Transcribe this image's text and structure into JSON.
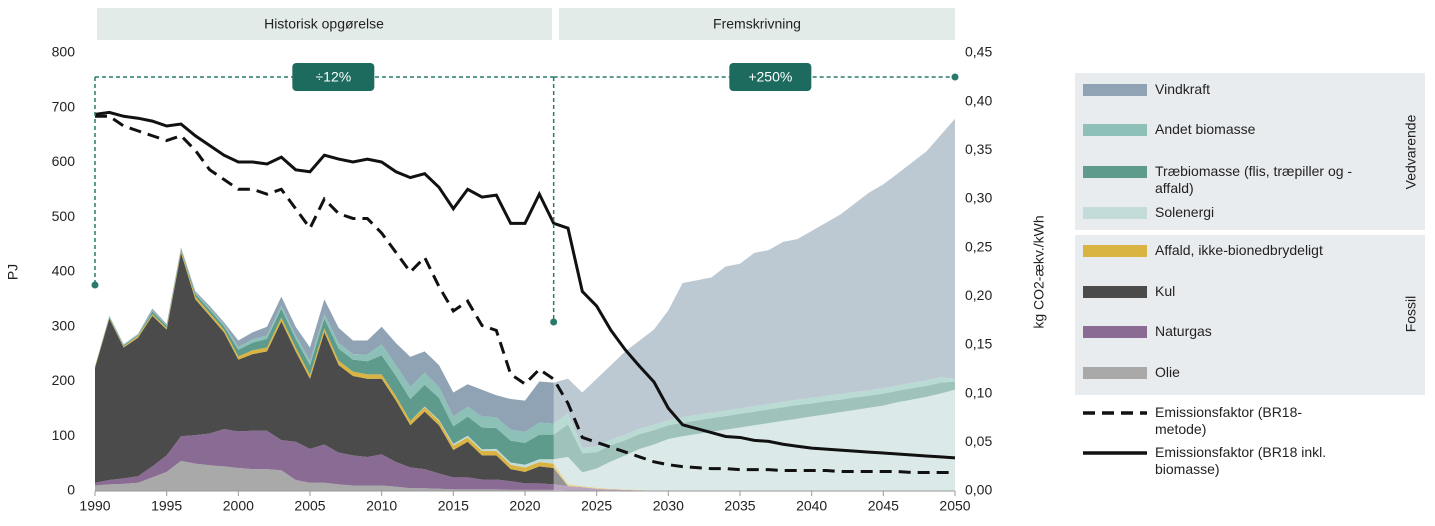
{
  "chart_data": {
    "type": "area",
    "sections": [
      "Historisk opgørelse",
      "Fremskrivning"
    ],
    "y_label": "PJ",
    "y2_label": "kg CO2-ækv./kWh",
    "legend_groups": [
      "Vedvarende",
      "Fossil"
    ],
    "x": [
      1990,
      1991,
      1992,
      1993,
      1994,
      1995,
      1996,
      1997,
      1998,
      1999,
      2000,
      2001,
      2002,
      2003,
      2004,
      2005,
      2006,
      2007,
      2008,
      2009,
      2010,
      2011,
      2012,
      2013,
      2014,
      2015,
      2016,
      2017,
      2018,
      2019,
      2020,
      2021,
      2022,
      2023,
      2024,
      2025,
      2026,
      2027,
      2028,
      2029,
      2030,
      2031,
      2032,
      2033,
      2034,
      2035,
      2036,
      2037,
      2038,
      2039,
      2040,
      2041,
      2042,
      2043,
      2044,
      2045,
      2046,
      2047,
      2048,
      2049,
      2050
    ],
    "xlim": [
      1990,
      2050
    ],
    "xticks": [
      1990,
      1995,
      2000,
      2005,
      2010,
      2015,
      2020,
      2025,
      2030,
      2035,
      2040,
      2045,
      2050
    ],
    "ylim": [
      0,
      800
    ],
    "yticks": [
      0,
      100,
      200,
      300,
      400,
      500,
      600,
      700,
      800
    ],
    "y2lim": [
      0,
      0.45
    ],
    "y2ticks": [
      {
        "value": 0,
        "label": "0,00"
      },
      {
        "value": 0.05,
        "label": "0,05"
      },
      {
        "value": 0.1,
        "label": "0,10"
      },
      {
        "value": 0.15,
        "label": "0,15"
      },
      {
        "value": 0.2,
        "label": "0,20"
      },
      {
        "value": 0.25,
        "label": "0,25"
      },
      {
        "value": 0.3,
        "label": "0,30"
      },
      {
        "value": 0.35,
        "label": "0,35"
      },
      {
        "value": 0.4,
        "label": "0,40"
      },
      {
        "value": 0.45,
        "label": "0,45"
      }
    ],
    "annotations": [
      {
        "label": "÷12%",
        "x": [
          1990,
          2022
        ]
      },
      {
        "label": "+250%",
        "x": [
          2022,
          2050
        ]
      }
    ],
    "series": [
      {
        "name": "Olie",
        "type": "area",
        "color": "#a9a9a9",
        "values": [
          10,
          12,
          13,
          15,
          25,
          35,
          55,
          50,
          47,
          45,
          42,
          40,
          40,
          38,
          20,
          15,
          15,
          12,
          10,
          10,
          10,
          8,
          5,
          5,
          4,
          3,
          3,
          3,
          3,
          2,
          2,
          2,
          2,
          1,
          1,
          0,
          0,
          0,
          0,
          0,
          0,
          0,
          0,
          0,
          0,
          0,
          0,
          0,
          0,
          0,
          0,
          0,
          0,
          0,
          0,
          0,
          0,
          0,
          0,
          0,
          0
        ]
      },
      {
        "name": "Naturgas",
        "type": "area",
        "color": "#8a6b93",
        "values": [
          5,
          8,
          10,
          12,
          20,
          30,
          45,
          52,
          58,
          68,
          67,
          70,
          70,
          55,
          70,
          62,
          70,
          58,
          55,
          52,
          57,
          45,
          38,
          35,
          28,
          22,
          22,
          18,
          18,
          16,
          12,
          12,
          10,
          8,
          6,
          4,
          3,
          2,
          1,
          0,
          0,
          0,
          0,
          0,
          0,
          0,
          0,
          0,
          0,
          0,
          0,
          0,
          0,
          0,
          0,
          0,
          0,
          0,
          0,
          0,
          0
        ]
      },
      {
        "name": "Kul",
        "type": "area",
        "color": "#4b4b4b",
        "values": [
          210,
          295,
          239,
          253,
          275,
          230,
          335,
          248,
          215,
          177,
          131,
          140,
          145,
          217,
          165,
          128,
          205,
          160,
          145,
          143,
          138,
          112,
          77,
          105,
          88,
          50,
          65,
          44,
          44,
          22,
          21,
          31,
          30,
          0,
          0,
          0,
          0,
          0,
          0,
          0,
          0,
          0,
          0,
          0,
          0,
          0,
          0,
          0,
          0,
          0,
          0,
          0,
          0,
          0,
          0,
          0,
          0,
          0,
          0,
          0,
          0
        ]
      },
      {
        "name": "Affald, ikke-bionedbrydeligt",
        "type": "area",
        "color": "#d9b443",
        "values": [
          2,
          2,
          2,
          3,
          3,
          3,
          4,
          5,
          5,
          5,
          6,
          7,
          7,
          7,
          7,
          7,
          7,
          8,
          8,
          8,
          8,
          8,
          8,
          8,
          8,
          8,
          8,
          8,
          8,
          8,
          8,
          8,
          8,
          3,
          2,
          2,
          1,
          1,
          1,
          0,
          0,
          0,
          0,
          0,
          0,
          0,
          0,
          0,
          0,
          0,
          0,
          0,
          0,
          0,
          0,
          0,
          0,
          0,
          0,
          0,
          0
        ]
      },
      {
        "name": "Solenergi",
        "type": "area",
        "color": "#c4dcd9",
        "values": [
          0,
          0,
          0,
          0,
          0,
          0,
          0,
          0,
          0,
          0,
          0,
          0,
          0,
          0,
          0,
          0,
          0,
          0,
          0,
          0,
          0,
          0,
          0,
          1,
          2,
          3,
          3,
          3,
          4,
          4,
          5,
          5,
          8,
          50,
          25,
          35,
          50,
          62,
          75,
          85,
          95,
          100,
          104,
          108,
          112,
          116,
          120,
          124,
          128,
          132,
          136,
          140,
          144,
          148,
          152,
          156,
          162,
          167,
          172,
          178,
          185
        ]
      },
      {
        "name": "Træbiomasse (flis, træpiller og -affald)",
        "type": "area",
        "color": "#5f9b8d",
        "values": [
          1,
          2,
          2,
          2,
          5,
          4,
          3,
          5,
          6,
          6,
          12,
          14,
          16,
          16,
          16,
          18,
          18,
          22,
          22,
          24,
          35,
          37,
          40,
          40,
          40,
          32,
          35,
          40,
          38,
          40,
          40,
          45,
          45,
          60,
          35,
          30,
          30,
          28,
          27,
          26,
          25,
          25,
          25,
          25,
          25,
          25,
          25,
          25,
          25,
          25,
          24,
          24,
          23,
          23,
          22,
          22,
          21,
          21,
          20,
          20,
          15
        ]
      },
      {
        "name": "Andet biomasse",
        "type": "area",
        "color": "#8dc1b8",
        "values": [
          0,
          1,
          1,
          1,
          2,
          1,
          1,
          2,
          3,
          3,
          5,
          6,
          6,
          6,
          6,
          8,
          8,
          10,
          10,
          12,
          20,
          20,
          22,
          22,
          20,
          18,
          18,
          20,
          20,
          20,
          20,
          22,
          20,
          20,
          10,
          10,
          10,
          10,
          10,
          10,
          10,
          10,
          10,
          10,
          10,
          10,
          10,
          10,
          10,
          10,
          10,
          10,
          10,
          10,
          10,
          10,
          10,
          10,
          10,
          10,
          5
        ]
      },
      {
        "name": "Vindkraft",
        "type": "area",
        "color": "#8fa3b4",
        "values": [
          0,
          0,
          1,
          1,
          3,
          2,
          2,
          3,
          4,
          4,
          12,
          13,
          16,
          16,
          16,
          24,
          27,
          28,
          25,
          26,
          32,
          40,
          55,
          39,
          40,
          44,
          41,
          49,
          40,
          56,
          57,
          75,
          75,
          63,
          101,
          124,
          136,
          152,
          161,
          174,
          200,
          245,
          246,
          247,
          263,
          264,
          280,
          281,
          292,
          293,
          305,
          316,
          328,
          344,
          361,
          372,
          387,
          402,
          418,
          442,
          475
        ]
      },
      {
        "name": "Emissionsfaktor (BR18-metode)",
        "type": "line",
        "axis": "y2",
        "line_style": "dashed",
        "color": "#111111",
        "values": [
          0.385,
          0.385,
          0.375,
          0.37,
          0.365,
          0.36,
          0.365,
          0.35,
          0.33,
          0.32,
          0.31,
          0.31,
          0.305,
          0.31,
          0.29,
          0.27,
          0.3,
          0.285,
          0.28,
          0.28,
          0.265,
          0.245,
          0.225,
          0.24,
          0.21,
          0.185,
          0.195,
          0.17,
          0.165,
          0.12,
          0.11,
          0.125,
          0.115,
          0.09,
          0.055,
          0.05,
          0.045,
          0.04,
          0.035,
          0.03,
          0.027,
          0.025,
          0.024,
          0.023,
          0.023,
          0.022,
          0.022,
          0.022,
          0.021,
          0.021,
          0.021,
          0.021,
          0.02,
          0.02,
          0.02,
          0.02,
          0.02,
          0.019,
          0.019,
          0.019,
          0.019
        ]
      },
      {
        "name": "Emissionsfaktor (BR18 inkl. biomasse)",
        "type": "line",
        "axis": "y2",
        "line_style": "solid",
        "color": "#111111",
        "values": [
          0.387,
          0.389,
          0.385,
          0.383,
          0.38,
          0.375,
          0.377,
          0.365,
          0.355,
          0.345,
          0.338,
          0.338,
          0.336,
          0.343,
          0.33,
          0.328,
          0.345,
          0.341,
          0.338,
          0.341,
          0.338,
          0.328,
          0.322,
          0.326,
          0.312,
          0.29,
          0.31,
          0.302,
          0.304,
          0.275,
          0.275,
          0.305,
          0.275,
          0.27,
          0.205,
          0.19,
          0.165,
          0.145,
          0.128,
          0.112,
          0.085,
          0.068,
          0.064,
          0.06,
          0.056,
          0.055,
          0.052,
          0.051,
          0.048,
          0.046,
          0.044,
          0.043,
          0.042,
          0.041,
          0.04,
          0.039,
          0.038,
          0.037,
          0.036,
          0.035,
          0.034
        ]
      }
    ]
  }
}
